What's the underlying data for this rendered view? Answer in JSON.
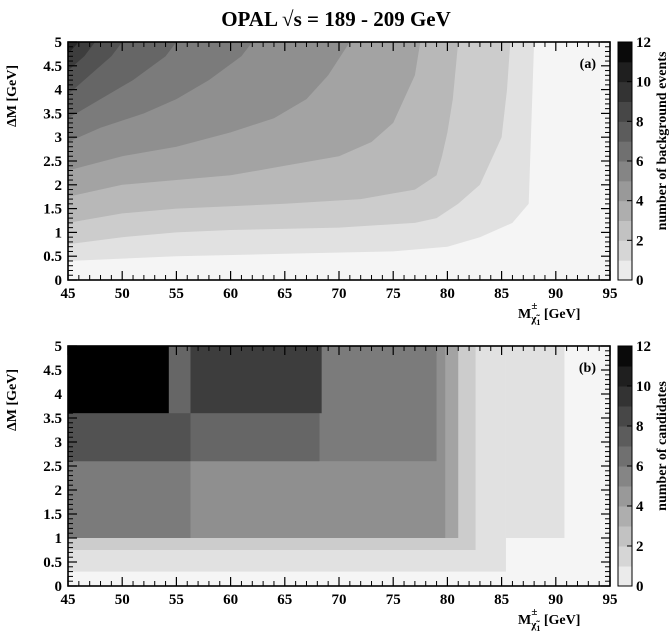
{
  "chart_data": [
    {
      "type": "heatmap",
      "title": "OPAL √s = 189 - 209 GeV",
      "panel_label": "(a)",
      "xlabel": "M",
      "xlabel_sub": "χ̃",
      "xlabel_sub2": "1",
      "xlabel_sup": "±",
      "xlabel_unit": "[GeV]",
      "ylabel": "ΔM [GeV]",
      "zlabel": "number of background events",
      "xlim": [
        45,
        95
      ],
      "ylim": [
        0,
        5
      ],
      "zlim": [
        0,
        12
      ],
      "x_ticks": [
        "45",
        "50",
        "55",
        "60",
        "65",
        "70",
        "75",
        "80",
        "85",
        "90",
        "95"
      ],
      "y_ticks": [
        "0",
        "0.5",
        "1",
        "1.5",
        "2",
        "2.5",
        "3",
        "3.5",
        "4",
        "4.5",
        "5"
      ],
      "z_ticks": [
        "0",
        "2",
        "4",
        "6",
        "8",
        "10",
        "12"
      ],
      "contours": [
        {
          "level": 1,
          "boundary": [
            [
              45,
              0.4
            ],
            [
              55,
              0.5
            ],
            [
              65,
              0.55
            ],
            [
              75,
              0.6
            ],
            [
              80,
              0.7
            ],
            [
              83,
              0.9
            ],
            [
              86,
              1.2
            ],
            [
              87.5,
              1.6
            ],
            [
              88,
              5
            ]
          ]
        },
        {
          "level": 2,
          "boundary": [
            [
              45,
              0.75
            ],
            [
              50,
              0.9
            ],
            [
              55,
              1.0
            ],
            [
              60,
              1.05
            ],
            [
              70,
              1.1
            ],
            [
              77,
              1.2
            ],
            [
              79,
              1.3
            ],
            [
              81,
              1.6
            ],
            [
              83,
              2.0
            ],
            [
              84,
              2.5
            ],
            [
              85,
              3.0
            ],
            [
              85.5,
              4.0
            ],
            [
              85.8,
              5
            ]
          ]
        },
        {
          "level": 3,
          "boundary": [
            [
              45,
              1.2
            ],
            [
              50,
              1.4
            ],
            [
              55,
              1.5
            ],
            [
              60,
              1.55
            ],
            [
              65,
              1.6
            ],
            [
              72,
              1.7
            ],
            [
              77,
              1.9
            ],
            [
              79,
              2.2
            ],
            [
              79.5,
              2.6
            ],
            [
              80,
              3.1
            ],
            [
              80.5,
              3.8
            ],
            [
              81,
              5
            ]
          ]
        },
        {
          "level": 4,
          "boundary": [
            [
              45,
              1.75
            ],
            [
              50,
              2.0
            ],
            [
              55,
              2.1
            ],
            [
              60,
              2.2
            ],
            [
              65,
              2.4
            ],
            [
              70,
              2.6
            ],
            [
              73,
              2.9
            ],
            [
              75,
              3.3
            ],
            [
              76,
              3.8
            ],
            [
              77,
              4.3
            ],
            [
              77.5,
              5
            ]
          ]
        },
        {
          "level": 5,
          "boundary": [
            [
              45,
              2.3
            ],
            [
              50,
              2.6
            ],
            [
              55,
              2.8
            ],
            [
              60,
              3.1
            ],
            [
              64,
              3.4
            ],
            [
              67,
              3.8
            ],
            [
              69,
              4.3
            ],
            [
              71,
              5
            ]
          ]
        },
        {
          "level": 6,
          "boundary": [
            [
              45,
              2.9
            ],
            [
              48,
              3.2
            ],
            [
              52,
              3.5
            ],
            [
              55,
              3.8
            ],
            [
              58,
              4.2
            ],
            [
              61,
              4.7
            ],
            [
              62,
              5
            ]
          ]
        },
        {
          "level": 7,
          "boundary": [
            [
              45,
              3.4
            ],
            [
              48,
              3.8
            ],
            [
              51,
              4.2
            ],
            [
              54,
              4.7
            ],
            [
              55,
              5
            ]
          ]
        },
        {
          "level": 8,
          "boundary": [
            [
              45,
              3.9
            ],
            [
              47,
              4.3
            ],
            [
              49,
              4.7
            ],
            [
              50,
              5
            ]
          ]
        },
        {
          "level": 9,
          "boundary": [
            [
              45,
              4.4
            ],
            [
              46.5,
              4.7
            ],
            [
              47.5,
              5
            ]
          ]
        },
        {
          "level": 10,
          "boundary": [
            [
              45,
              4.75
            ],
            [
              46,
              5
            ]
          ]
        }
      ]
    },
    {
      "type": "heatmap",
      "panel_label": "(b)",
      "xlabel": "M",
      "xlabel_sub": "χ̃",
      "xlabel_sub2": "1",
      "xlabel_sup": "±",
      "xlabel_unit": "[GeV]",
      "ylabel": "ΔM [GeV]",
      "zlabel": "number of candidates",
      "xlim": [
        45,
        95
      ],
      "ylim": [
        0,
        5
      ],
      "zlim": [
        0,
        12
      ],
      "x_ticks": [
        "45",
        "50",
        "55",
        "60",
        "65",
        "70",
        "75",
        "80",
        "85",
        "90",
        "95"
      ],
      "y_ticks": [
        "0",
        "0.5",
        "1",
        "1.5",
        "2",
        "2.5",
        "3",
        "3.5",
        "4",
        "4.5",
        "5"
      ],
      "z_ticks": [
        "0",
        "2",
        "4",
        "6",
        "8",
        "10",
        "12"
      ],
      "cells": [
        {
          "x": [
            90.8,
            95
          ],
          "y": [
            0,
            5
          ],
          "v": 0
        },
        {
          "x": [
            85.4,
            90.8
          ],
          "y": [
            0,
            5
          ],
          "v": 0
        },
        {
          "x": [
            85.4,
            90.8
          ],
          "y": [
            1.0,
            5
          ],
          "v": 1
        },
        {
          "x": [
            45,
            85.4
          ],
          "y": [
            0,
            0.3
          ],
          "v": 0
        },
        {
          "x": [
            45,
            85.4
          ],
          "y": [
            0.3,
            5
          ],
          "v": 1
        },
        {
          "x": [
            45,
            82.6
          ],
          "y": [
            0.75,
            5
          ],
          "v": 2
        },
        {
          "x": [
            45,
            81.0
          ],
          "y": [
            1.0,
            5
          ],
          "v": 4
        },
        {
          "x": [
            45,
            79.8
          ],
          "y": [
            1.0,
            5
          ],
          "v": 5
        },
        {
          "x": [
            45,
            56.3
          ],
          "y": [
            1.0,
            2.6
          ],
          "v": 6
        },
        {
          "x": [
            45,
            79.0
          ],
          "y": [
            2.6,
            5
          ],
          "v": 6
        },
        {
          "x": [
            45,
            68.2
          ],
          "y": [
            2.6,
            5
          ],
          "v": 7
        },
        {
          "x": [
            45,
            56.3
          ],
          "y": [
            2.6,
            3.6
          ],
          "v": 8
        },
        {
          "x": [
            56.3,
            68.4
          ],
          "y": [
            3.6,
            5
          ],
          "v": 9
        },
        {
          "x": [
            45,
            54.3
          ],
          "y": [
            3.6,
            5
          ],
          "v": 12
        }
      ]
    }
  ]
}
